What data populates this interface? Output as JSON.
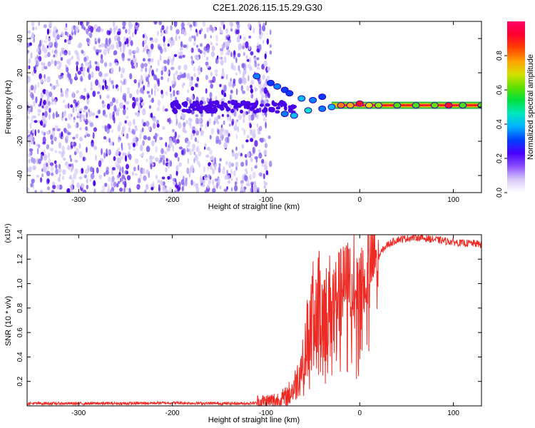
{
  "title": "C2E1.2026.115.15.29.G30",
  "colors": {
    "snr_line": "#ee2a24",
    "snr_pre": "#ee3a30",
    "dot_dark": "#4a00e8",
    "dot_mid": "#8a6af0",
    "dot_light": "#d4c8f8",
    "frame": "#000000"
  },
  "chart_data": [
    {
      "id": "spectrogram",
      "type": "heatmap",
      "xlabel": "Height of straight line (km)",
      "ylabel": "Frequency (Hz)",
      "xlim": [
        -355,
        130
      ],
      "ylim": [
        -50,
        50
      ],
      "xticks": [
        -300,
        -200,
        -100,
        0,
        100
      ],
      "xtick_labels": [
        "-300",
        "-200",
        "-100",
        "0",
        "100"
      ],
      "yticks": [
        -40,
        -20,
        0,
        20,
        40
      ],
      "ytick_labels": [
        "-40",
        "-20",
        "0",
        "20",
        "40"
      ],
      "noise_region_x": [
        -355,
        -95
      ],
      "main_band_freq_hz": 1,
      "trace_points": [
        {
          "x": -110,
          "y": 18,
          "v": 0.35
        },
        {
          "x": -95,
          "y": 14,
          "v": 0.3
        },
        {
          "x": -88,
          "y": 12,
          "v": 0.35
        },
        {
          "x": -80,
          "y": 10,
          "v": 0.3
        },
        {
          "x": -75,
          "y": 8,
          "v": 0.3
        },
        {
          "x": -62,
          "y": 5,
          "v": 0.4
        },
        {
          "x": -50,
          "y": 4,
          "v": 0.35
        },
        {
          "x": -40,
          "y": 6,
          "v": 0.3
        },
        {
          "x": -80,
          "y": -4,
          "v": 0.35
        },
        {
          "x": -70,
          "y": -5,
          "v": 0.4
        },
        {
          "x": -55,
          "y": -2,
          "v": 0.45
        },
        {
          "x": -40,
          "y": -1,
          "v": 0.35
        },
        {
          "x": -30,
          "y": 0,
          "v": 0.4
        },
        {
          "x": -20,
          "y": 1,
          "v": 0.8
        },
        {
          "x": -10,
          "y": 1,
          "v": 0.75
        },
        {
          "x": 0,
          "y": 2,
          "v": 0.9
        },
        {
          "x": 10,
          "y": 1,
          "v": 0.7
        },
        {
          "x": 20,
          "y": 1,
          "v": 0.65
        },
        {
          "x": 40,
          "y": 1,
          "v": 0.6
        },
        {
          "x": 60,
          "y": 1,
          "v": 0.6
        },
        {
          "x": 80,
          "y": 1,
          "v": 0.62
        },
        {
          "x": 95,
          "y": 1,
          "v": 0.9
        },
        {
          "x": 110,
          "y": 1,
          "v": 0.6
        },
        {
          "x": 130,
          "y": 1,
          "v": 0.6
        }
      ]
    },
    {
      "id": "colorbar",
      "type": "heatmap",
      "label": "Normalized spectral amplitude",
      "range": [
        0,
        1
      ],
      "ticks": [
        0.0,
        0.2,
        0.4,
        0.6,
        0.8
      ],
      "tick_labels": [
        "0.0",
        "0.2",
        "0.4",
        "0.6",
        "0.8"
      ],
      "stops": [
        "#ffffff",
        "#d8c8f8",
        "#8a50ff",
        "#4800ff",
        "#0040ff",
        "#00b0ff",
        "#00e8c0",
        "#00e040",
        "#60e000",
        "#d8e000",
        "#ffa000",
        "#ff4000",
        "#ff0030",
        "#ff0066"
      ]
    },
    {
      "id": "snr",
      "type": "line",
      "xlabel": "Height of straight line (km)",
      "ylabel": "SNR (10 * v/v)",
      "multiplier": "(x10⁴)",
      "xlim": [
        -355,
        130
      ],
      "ylim": [
        0,
        1.4
      ],
      "xticks": [
        -300,
        -200,
        -100,
        0,
        100
      ],
      "xtick_labels": [
        "-300",
        "-200",
        "-100",
        "0",
        "100"
      ],
      "yticks": [
        0.2,
        0.4,
        0.6,
        0.8,
        1.0,
        1.2,
        1.4
      ],
      "ytick_labels": [
        "0.2",
        "0.4",
        "0.6",
        "0.8",
        "1.0",
        "1.2",
        "1.4"
      ],
      "series": [
        {
          "name": "SNR",
          "x": [
            -355,
            -300,
            -250,
            -200,
            -150,
            -120,
            -100,
            -90,
            -80,
            -75,
            -70,
            -65,
            -60,
            -55,
            -50,
            -45,
            -40,
            -35,
            -30,
            -25,
            -20,
            -15,
            -10,
            -5,
            0,
            5,
            10,
            15,
            20,
            25,
            30,
            40,
            50,
            60,
            70,
            80,
            90,
            100,
            110,
            120,
            130
          ],
          "y": [
            0.02,
            0.02,
            0.02,
            0.025,
            0.02,
            0.02,
            0.03,
            0.04,
            0.06,
            0.1,
            0.15,
            0.25,
            0.4,
            0.6,
            0.75,
            0.8,
            0.85,
            0.75,
            0.85,
            0.9,
            0.95,
            1.0,
            1.05,
            1.1,
            1.1,
            1.1,
            1.15,
            1.2,
            1.22,
            1.28,
            1.32,
            1.36,
            1.37,
            1.38,
            1.37,
            1.36,
            1.35,
            1.34,
            1.33,
            1.33,
            1.32
          ]
        }
      ]
    }
  ]
}
